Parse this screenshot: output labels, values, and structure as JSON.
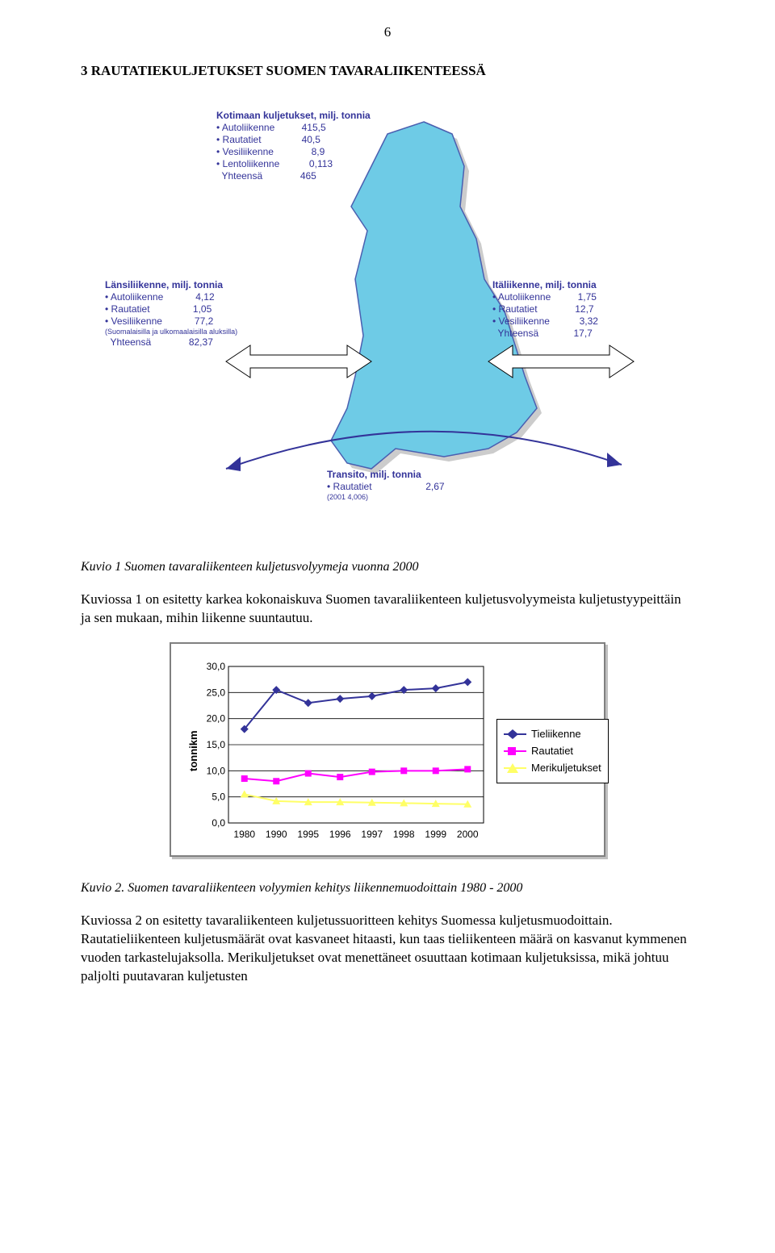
{
  "page_number": "6",
  "heading": "3    RAUTATIEKULJETUKSET SUOMEN TAVARALIIKENTEESSÄ",
  "map": {
    "bg_color": "#6ecbe6",
    "outline_color": "#333399",
    "domestic": {
      "title": "Kotimaan kuljetukset, milj. tonnia",
      "rows": [
        "• Autoliikenne          415,5",
        "• Rautatiet               40,5",
        "• Vesiliikenne              8,9",
        "• Lentoliikenne           0,113",
        "  Yhteensä              465"
      ]
    },
    "west": {
      "title": "Länsiliikenne, milj. tonnia",
      "rows": [
        "• Autoliikenne            4,12",
        "• Rautatiet                1,05",
        "• Vesiliikenne            77,2"
      ],
      "fine": " (Suomalaisilla ja ulkomaalaisilla aluksilla)",
      "total": "  Yhteensä              82,37"
    },
    "east": {
      "title": "Itäliikenne, milj. tonnia",
      "rows": [
        "• Autoliikenne          1,75",
        "• Rautatiet              12,7",
        "• Vesiliikenne           3,32",
        "  Yhteensä             17,7"
      ]
    },
    "transit": {
      "title": "Transito, milj. tonnia",
      "rows": [
        "• Rautatiet                    2,67"
      ],
      "fine": "(2001 4,006)"
    }
  },
  "caption1": "Kuvio 1 Suomen tavaraliikenteen kuljetusvolyymeja vuonna 2000",
  "para1": "Kuviossa 1 on esitetty karkea kokonaiskuva Suomen tavaraliikenteen kuljetusvolyymeista kuljetustyypeittäin ja sen mukaan, mihin liikenne suuntautuu.",
  "chart": {
    "type": "line",
    "x_labels": [
      "1980",
      "1990",
      "1995",
      "1996",
      "1997",
      "1998",
      "1999",
      "2000"
    ],
    "y": {
      "min": 0,
      "max": 30,
      "step": 5,
      "label": "tonnikm"
    },
    "grid_color": "#000000",
    "series": [
      {
        "name": "Tieliikenne",
        "color": "#333399",
        "marker": "diamond",
        "values": [
          18.0,
          25.5,
          23.0,
          23.8,
          24.3,
          25.5,
          25.8,
          27.0
        ]
      },
      {
        "name": "Rautatiet",
        "color": "#ff00ff",
        "marker": "square",
        "values": [
          8.5,
          8.0,
          9.5,
          8.8,
          9.8,
          10.0,
          10.0,
          10.3
        ]
      },
      {
        "name": "Merikuljetukset",
        "color": "#ffff66",
        "marker": "triangle",
        "values": [
          5.5,
          4.2,
          4.0,
          4.0,
          3.9,
          3.8,
          3.7,
          3.6
        ]
      }
    ]
  },
  "caption2": "Kuvio 2. Suomen tavaraliikenteen volyymien kehitys liikennemuodoittain 1980 - 2000",
  "para2": "Kuviossa 2 on esitetty tavaraliikenteen kuljetussuoritteen kehitys Suomessa kuljetusmuodoittain. Rautatieliikenteen kuljetusmäärät ovat kasvaneet hitaasti, kun taas tieliikenteen määrä on kasvanut kymmenen vuoden tarkastelujaksolla. Merikuljetukset ovat menettäneet osuuttaan kotimaan kuljetuksissa, mikä johtuu paljolti puutavaran kuljetusten"
}
